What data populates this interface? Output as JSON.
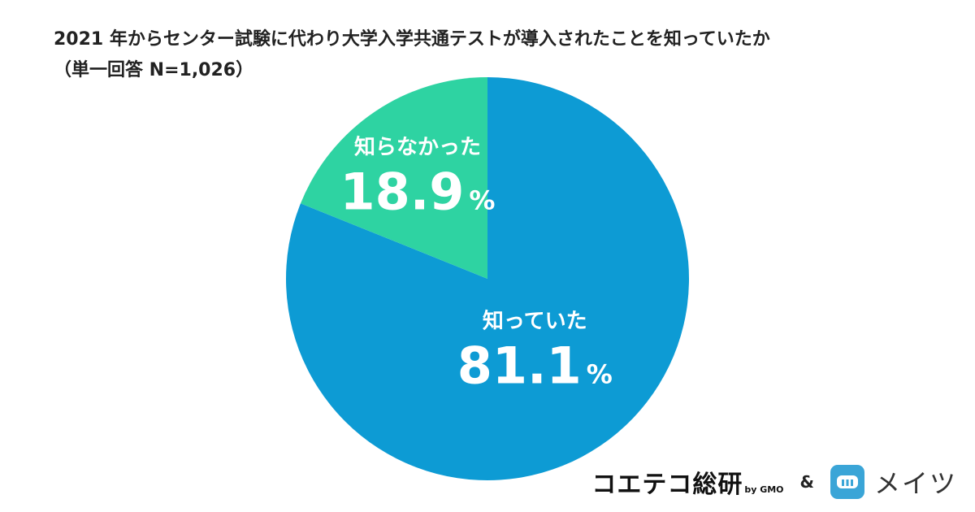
{
  "title_line1": "2021 年からセンター試験に代わり大学入学共通テストが導入されたことを知っていたか",
  "title_line2": "（単一回答 N=1,026）",
  "chart_data": {
    "type": "pie",
    "start": "12 o'clock, clockwise",
    "slices": [
      {
        "label": "知っていた",
        "value": 81.1,
        "value_text": "81.1",
        "unit": "%",
        "color": "#0d9bd4"
      },
      {
        "label": "知らなかった",
        "value": 18.9,
        "value_text": "18.9",
        "unit": "%",
        "color": "#2ed3a2"
      }
    ]
  },
  "footer": {
    "brand1": "コエテコ総研",
    "brand1_by": "by GMO",
    "amp": "&",
    "brand2_icon": "mates-logo-icon",
    "brand2": "メイツ"
  }
}
